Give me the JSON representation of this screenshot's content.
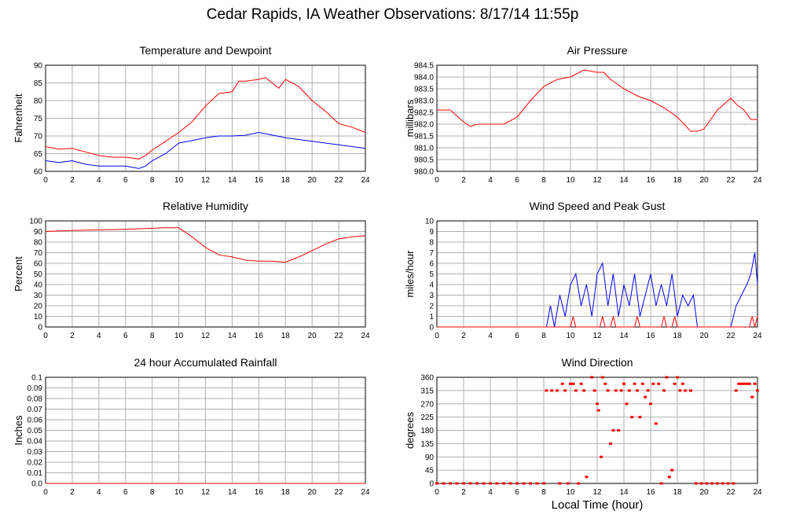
{
  "title": "Cedar Rapids, IA Weather Observations: 8/17/14 11:55p",
  "xlabel": "Local Time (hour)",
  "colors": {
    "red": "#ff0000",
    "blue": "#0000ff",
    "grid": "#b0b0b0"
  },
  "chart_data": [
    {
      "id": "temp",
      "type": "line",
      "title": "Temperature and Dewpoint",
      "ylabel": "Fahrenheit",
      "xlim": [
        0,
        24
      ],
      "ylim": [
        60,
        90
      ],
      "yticks": [
        "60",
        "65",
        "70",
        "75",
        "80",
        "85",
        "90"
      ],
      "xticks": [
        "0",
        "2",
        "4",
        "6",
        "8",
        "10",
        "12",
        "14",
        "16",
        "18",
        "20",
        "22",
        "24"
      ],
      "grid": true,
      "series": [
        {
          "color": "#ff0000",
          "x": [
            0,
            1,
            2,
            3,
            4,
            5,
            6,
            7,
            7.5,
            8,
            9,
            10,
            11,
            12,
            13,
            14,
            14.5,
            15,
            16,
            16.5,
            17,
            17.5,
            18,
            19,
            20,
            21,
            22,
            23,
            24
          ],
          "y": [
            67,
            66.3,
            66.5,
            65.5,
            64.5,
            64,
            64,
            63.5,
            64.5,
            66,
            68.5,
            71,
            74,
            78.5,
            82,
            82.5,
            85.5,
            85.5,
            86,
            86.5,
            85,
            83.5,
            86,
            84,
            80,
            77,
            73.5,
            72.5,
            71
          ]
        },
        {
          "color": "#0000ff",
          "x": [
            0,
            1,
            2,
            3,
            4,
            5,
            6,
            7,
            7.5,
            8,
            9,
            10,
            11,
            12,
            13,
            14,
            15,
            16,
            17,
            18,
            19,
            20,
            21,
            22,
            23,
            24
          ],
          "y": [
            63,
            62.5,
            63,
            62,
            61.5,
            61.5,
            61.5,
            60.8,
            61.5,
            63,
            65,
            68,
            68.7,
            69.5,
            70,
            70,
            70.2,
            71,
            70.3,
            69.5,
            69,
            68.5,
            68,
            67.5,
            67,
            66.5
          ]
        }
      ]
    },
    {
      "id": "pressure",
      "type": "line",
      "title": "Air Pressure",
      "ylabel": "millibars",
      "xlim": [
        0,
        24
      ],
      "ylim": [
        980.0,
        984.5
      ],
      "yticks": [
        "980.0",
        "980.5",
        "981.0",
        "981.5",
        "982.0",
        "982.5",
        "983.0",
        "983.5",
        "984.0",
        "984.5"
      ],
      "xticks": [
        "0",
        "2",
        "4",
        "6",
        "8",
        "10",
        "12",
        "14",
        "16",
        "18",
        "20",
        "22",
        "24"
      ],
      "grid": true,
      "series": [
        {
          "color": "#ff0000",
          "x": [
            0,
            1,
            2,
            2.5,
            3,
            4,
            5,
            6,
            7,
            8,
            9,
            10,
            11,
            12,
            12.5,
            13,
            14,
            15,
            16,
            17,
            18,
            19,
            19.5,
            20,
            21,
            22,
            22.5,
            23,
            23.5,
            24
          ],
          "y": [
            982.6,
            982.6,
            982.1,
            981.9,
            982.0,
            982.0,
            982.0,
            982.3,
            983.0,
            983.6,
            983.9,
            984.0,
            984.3,
            984.2,
            984.2,
            983.9,
            983.5,
            983.2,
            983.0,
            982.7,
            982.3,
            981.7,
            981.7,
            981.8,
            982.6,
            983.1,
            982.8,
            982.6,
            982.2,
            982.2
          ]
        }
      ]
    },
    {
      "id": "humidity",
      "type": "line",
      "title": "Relative Humidity",
      "ylabel": "Percent",
      "xlim": [
        0,
        24
      ],
      "ylim": [
        0,
        100
      ],
      "yticks": [
        "0",
        "10",
        "20",
        "30",
        "40",
        "50",
        "60",
        "70",
        "80",
        "90",
        "100"
      ],
      "xticks": [
        "0",
        "2",
        "4",
        "6",
        "8",
        "10",
        "12",
        "14",
        "16",
        "18",
        "20",
        "22",
        "24"
      ],
      "grid": true,
      "series": [
        {
          "color": "#ff0000",
          "x": [
            0,
            2,
            4,
            6,
            8,
            9,
            10,
            11,
            12,
            13,
            14,
            15,
            16,
            17,
            18,
            19,
            20,
            21,
            22,
            23,
            24
          ],
          "y": [
            90,
            91,
            91.5,
            92,
            93,
            93.5,
            93.5,
            85,
            75,
            68,
            66,
            63,
            62,
            62,
            61,
            66,
            72,
            78,
            83,
            85,
            86
          ]
        }
      ]
    },
    {
      "id": "wind",
      "type": "line",
      "title": "Wind Speed and Peak Gust",
      "ylabel": "miles/hour",
      "xlim": [
        0,
        24
      ],
      "ylim": [
        0,
        10
      ],
      "yticks": [
        "0",
        "1",
        "2",
        "3",
        "4",
        "5",
        "6",
        "7",
        "8",
        "9",
        "10"
      ],
      "xticks": [
        "0",
        "2",
        "4",
        "6",
        "8",
        "10",
        "12",
        "14",
        "16",
        "18",
        "20",
        "22",
        "24"
      ],
      "grid": true,
      "series": [
        {
          "color": "#0000ff",
          "x": [
            0,
            8.2,
            8.5,
            8.8,
            9.2,
            9.6,
            10.0,
            10.4,
            10.8,
            11.2,
            11.6,
            12.0,
            12.4,
            12.8,
            13.2,
            13.6,
            14.0,
            14.4,
            14.8,
            15.2,
            15.6,
            16.0,
            16.4,
            16.8,
            17.2,
            17.6,
            18.0,
            18.4,
            18.8,
            19.2,
            19.5,
            20,
            21,
            22,
            22.4,
            22.8,
            23.2,
            23.5,
            23.8,
            24
          ],
          "y": [
            0,
            0,
            2,
            0,
            3,
            1,
            4,
            5,
            2,
            4,
            1,
            5,
            6,
            2,
            5,
            1,
            4,
            2,
            5,
            1,
            3,
            5,
            2,
            4,
            2,
            5,
            1,
            3,
            2,
            3,
            0,
            0,
            0,
            0,
            2,
            3,
            4,
            5,
            7,
            4
          ]
        },
        {
          "color": "#ff0000",
          "x": [
            0,
            10.0,
            10.2,
            10.4,
            12.2,
            12.4,
            12.6,
            13.0,
            13.2,
            13.4,
            14.8,
            15.0,
            15.2,
            16.8,
            17.0,
            17.2,
            17.6,
            17.8,
            18.0,
            23.4,
            23.6,
            23.8,
            24
          ],
          "y": [
            0,
            0,
            1,
            0,
            0,
            1,
            0,
            0,
            1,
            0,
            0,
            1,
            0,
            0,
            1,
            0,
            0,
            1,
            0,
            0,
            1,
            0,
            1
          ]
        }
      ]
    },
    {
      "id": "rain",
      "type": "line",
      "title": "24 hour Accumulated Rainfall",
      "ylabel": "Inches",
      "xlim": [
        0,
        24
      ],
      "ylim": [
        0,
        0.1
      ],
      "yticks": [
        "0.0",
        "0.01",
        "0.02",
        "0.03",
        "0.04",
        "0.05",
        "0.06",
        "0.07",
        "0.08",
        "0.09",
        "0.1"
      ],
      "xticks": [
        "0",
        "2",
        "4",
        "6",
        "8",
        "10",
        "12",
        "14",
        "16",
        "18",
        "20",
        "22",
        "24"
      ],
      "grid": true,
      "series": [
        {
          "color": "#ff0000",
          "x": [
            0,
            24
          ],
          "y": [
            0,
            0
          ]
        }
      ]
    },
    {
      "id": "winddir",
      "type": "scatter",
      "title": "Wind Direction",
      "ylabel": "degrees",
      "xlim": [
        0,
        24
      ],
      "ylim": [
        0,
        360
      ],
      "yticks": [
        "0",
        "45",
        "90",
        "135",
        "180",
        "225",
        "270",
        "315",
        "360"
      ],
      "xticks": [
        "0",
        "2",
        "4",
        "6",
        "8",
        "10",
        "12",
        "14",
        "16",
        "18",
        "20",
        "22",
        "24"
      ],
      "grid": true,
      "series": [
        {
          "color": "#ff0000",
          "x": [
            0,
            0.5,
            1,
            1.5,
            2,
            2.5,
            3,
            3.5,
            4,
            4.5,
            5,
            5.5,
            6,
            6.5,
            7,
            7.5,
            8,
            8.2,
            8.6,
            9.0,
            9.2,
            9.4,
            9.6,
            9.8,
            10.0,
            10.2,
            10.4,
            10.6,
            10.8,
            11.0,
            11.2,
            11.6,
            11.8,
            12.0,
            12.1,
            12.3,
            12.4,
            12.6,
            12.8,
            13.0,
            13.2,
            13.4,
            13.6,
            13.8,
            14.0,
            14.2,
            14.4,
            14.6,
            14.8,
            15.0,
            15.2,
            15.4,
            15.6,
            15.8,
            16.0,
            16.2,
            16.4,
            16.6,
            16.8,
            17.0,
            17.2,
            17.4,
            17.6,
            17.8,
            18.0,
            18.2,
            18.4,
            18.6,
            19.0,
            19.4,
            19.8,
            20.2,
            20.6,
            21.0,
            21.4,
            21.8,
            22.2,
            22.4,
            22.6,
            22.8,
            23.0,
            23.2,
            23.4,
            23.6,
            23.8,
            24
          ],
          "y": [
            0,
            0,
            0,
            0,
            0,
            0,
            0,
            0,
            0,
            0,
            0,
            0,
            0,
            0,
            0,
            0,
            0,
            315,
            315,
            315,
            0,
            338,
            315,
            0,
            338,
            338,
            315,
            0,
            338,
            315,
            22,
            360,
            315,
            270,
            248,
            90,
            360,
            338,
            315,
            135,
            180,
            315,
            180,
            315,
            338,
            270,
            315,
            225,
            338,
            315,
            225,
            338,
            293,
            315,
            270,
            338,
            203,
            338,
            0,
            315,
            360,
            22,
            45,
            338,
            360,
            315,
            338,
            315,
            315,
            0,
            0,
            0,
            0,
            0,
            0,
            0,
            0,
            315,
            338,
            338,
            338,
            338,
            338,
            293,
            338,
            315
          ]
        }
      ]
    }
  ]
}
